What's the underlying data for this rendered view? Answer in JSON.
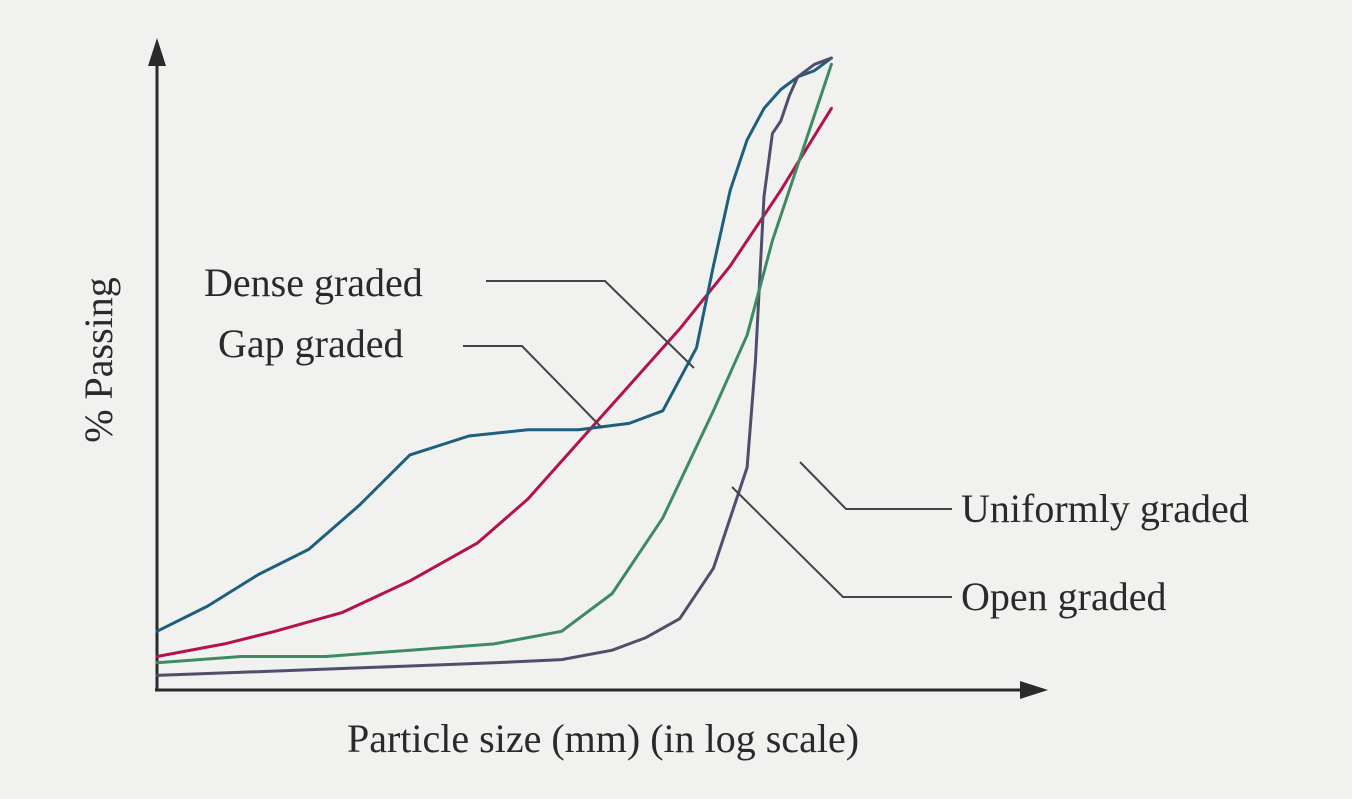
{
  "chart_data": {
    "type": "line",
    "title": "",
    "xlabel": "Particle size (mm) (in log scale)",
    "ylabel": "% Passing",
    "x_scale": "log",
    "grid": false,
    "xlim": [
      0,
      100
    ],
    "ylim": [
      0,
      100
    ],
    "x_ticks": [],
    "y_ticks": [],
    "series": [
      {
        "name": "Dense graded",
        "color": "#b3124e",
        "x": [
          0,
          8,
          14,
          22,
          30,
          38,
          44,
          50,
          56,
          62,
          68,
          74,
          80
        ],
        "y": [
          5,
          7,
          9,
          12,
          17,
          23,
          30,
          39,
          48,
          57,
          67,
          79,
          92
        ]
      },
      {
        "name": "Gap graded",
        "color": "#1e5f7e",
        "x": [
          0,
          6,
          12,
          18,
          24,
          30,
          37,
          44,
          50,
          56,
          60,
          64,
          66,
          68,
          70,
          72,
          74,
          76,
          78,
          80
        ],
        "y": [
          9,
          13,
          18,
          22,
          29,
          37,
          40,
          41,
          41,
          42,
          44,
          54,
          67,
          79,
          87,
          92,
          95,
          97,
          98,
          100
        ]
      },
      {
        "name": "Uniformly graded",
        "color": "#4d4f6b",
        "x": [
          0,
          10,
          20,
          30,
          40,
          48,
          54,
          58,
          62,
          66,
          70,
          71,
          72,
          73,
          74,
          75,
          76,
          78,
          80
        ],
        "y": [
          2,
          2.5,
          3,
          3.5,
          4,
          4.5,
          6,
          8,
          11,
          19,
          35,
          52,
          78,
          88,
          90,
          94,
          97,
          99,
          100
        ]
      },
      {
        "name": "Open graded",
        "color": "#3d8a63",
        "x": [
          0,
          10,
          20,
          30,
          40,
          48,
          54,
          60,
          66,
          70,
          73,
          76,
          79,
          80
        ],
        "y": [
          4,
          5,
          5,
          6,
          7,
          9,
          15,
          27,
          44,
          56,
          71,
          83,
          95,
          99
        ]
      }
    ],
    "annotations": [
      {
        "label": "Dense graded",
        "series": "Dense graded"
      },
      {
        "label": "Gap graded",
        "series": "Gap graded"
      },
      {
        "label": "Uniformly graded",
        "series": "Uniformly graded"
      },
      {
        "label": "Open graded",
        "series": "Open graded"
      }
    ]
  }
}
